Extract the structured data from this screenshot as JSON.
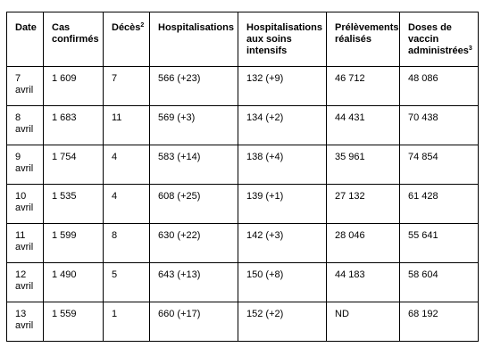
{
  "header": {
    "date": "Date",
    "cas": "Cas confirmés",
    "deces": "Décès",
    "deces_note": "2",
    "hospitalisations": "Hospitalisations",
    "soins_intensifs": "Hospitalisations aux soins intensifs",
    "prelevements": "Prélèvements réalisés",
    "doses": "Doses de vaccin administrées",
    "doses_note": "3"
  },
  "rows": [
    {
      "date": "7 avril",
      "cas": "1 609",
      "deces": "7",
      "hosp": "566 (+23)",
      "icu": "132 (+9)",
      "prel": "46 712",
      "doses": "48 086"
    },
    {
      "date": "8 avril",
      "cas": "1 683",
      "deces": "11",
      "hosp": "569 (+3)",
      "icu": "134 (+2)",
      "prel": "44 431",
      "doses": "70 438"
    },
    {
      "date": "9 avril",
      "cas": "1 754",
      "deces": "4",
      "hosp": "583 (+14)",
      "icu": "138 (+4)",
      "prel": "35 961",
      "doses": "74 854"
    },
    {
      "date": "10 avril",
      "cas": "1 535",
      "deces": "4",
      "hosp": "608 (+25)",
      "icu": "139 (+1)",
      "prel": "27 132",
      "doses": "61 428"
    },
    {
      "date": "11 avril",
      "cas": "1 599",
      "deces": "8",
      "hosp": "630 (+22)",
      "icu": "142 (+3)",
      "prel": "28 046",
      "doses": "55 641"
    },
    {
      "date": "12 avril",
      "cas": "1 490",
      "deces": "5",
      "hosp": "643 (+13)",
      "icu": "150 (+8)",
      "prel": "44 183",
      "doses": "58 604"
    },
    {
      "date": "13 avril",
      "cas": "1 559",
      "deces": "1",
      "hosp": "660 (+17)",
      "icu": "152 (+2)",
      "prel": "ND",
      "doses": "68 192"
    }
  ]
}
